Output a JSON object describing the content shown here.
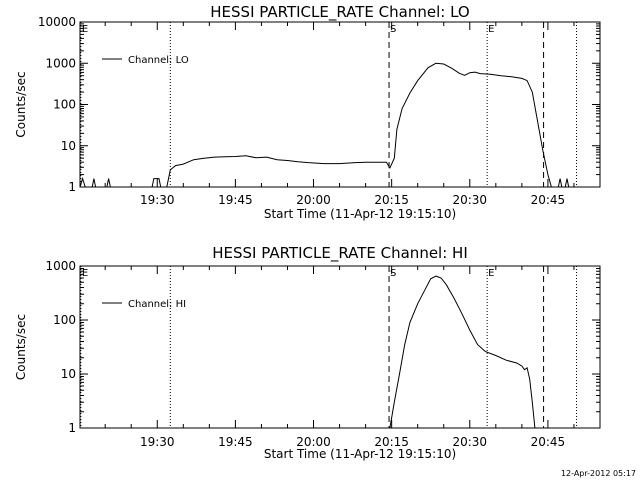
{
  "chart_data": [
    {
      "type": "line",
      "title": "HESSI PARTICLE_RATE Channel: LO",
      "xlabel": "Start Time (11-Apr-12 19:15:10)",
      "ylabel": "Counts/sec",
      "yscale": "log",
      "ylim": [
        1,
        10000
      ],
      "xlim": [
        "19:15:10",
        "20:55:00"
      ],
      "x_ticks": [
        "19:30",
        "19:45",
        "20:00",
        "20:15",
        "20:30",
        "20:45"
      ],
      "y_ticks": [
        "1",
        "10",
        "100",
        "1000",
        "10000"
      ],
      "legend": {
        "position": "top-left",
        "entries": [
          "Channel: LO"
        ]
      },
      "markers": [
        {
          "time": "19:15:20",
          "label": "E",
          "style": "dotted"
        },
        {
          "time": "19:32:30",
          "label": "",
          "style": "dotted"
        },
        {
          "time": "20:14:30",
          "label": "S",
          "style": "dashed"
        },
        {
          "time": "20:33:20",
          "label": "E",
          "style": "dotted"
        },
        {
          "time": "20:44:10",
          "label": "",
          "style": "dashed"
        },
        {
          "time": "20:50:30",
          "label": "",
          "style": "dotted"
        }
      ],
      "series": [
        {
          "name": "Channel: LO",
          "points": [
            [
              "19:15:10",
              1
            ],
            [
              "19:15:40",
              1.6
            ],
            [
              "19:16:10",
              1
            ],
            [
              "19:17:30",
              1
            ],
            [
              "19:17:50",
              1.6
            ],
            [
              "19:18:10",
              1
            ],
            [
              "19:20:20",
              1
            ],
            [
              "19:20:40",
              1.6
            ],
            [
              "19:21:00",
              1
            ],
            [
              "19:29:00",
              1
            ],
            [
              "19:29:20",
              1.6
            ],
            [
              "19:30:20",
              1.6
            ],
            [
              "19:30:40",
              1
            ],
            [
              "19:31:50",
              1
            ],
            [
              "19:32:30",
              2.6
            ],
            [
              "19:33:30",
              3.3
            ],
            [
              "19:35:00",
              3.6
            ],
            [
              "19:37:00",
              4.6
            ],
            [
              "19:39:00",
              5.0
            ],
            [
              "19:41:00",
              5.3
            ],
            [
              "19:43:00",
              5.4
            ],
            [
              "19:45:00",
              5.5
            ],
            [
              "19:47:00",
              5.7
            ],
            [
              "19:49:00",
              5.1
            ],
            [
              "19:51:00",
              5.3
            ],
            [
              "19:53:00",
              4.6
            ],
            [
              "19:55:00",
              4.4
            ],
            [
              "19:57:00",
              4.1
            ],
            [
              "19:59:00",
              3.9
            ],
            [
              "20:02:00",
              3.7
            ],
            [
              "20:05:00",
              3.7
            ],
            [
              "20:08:00",
              3.9
            ],
            [
              "20:10:00",
              4.0
            ],
            [
              "20:12:00",
              4.0
            ],
            [
              "20:14:00",
              4.0
            ],
            [
              "20:14:40",
              2.9
            ],
            [
              "20:15:30",
              5
            ],
            [
              "20:16:00",
              25
            ],
            [
              "20:17:00",
              80
            ],
            [
              "20:18:30",
              190
            ],
            [
              "20:20:00",
              380
            ],
            [
              "20:22:00",
              780
            ],
            [
              "20:23:30",
              1000
            ],
            [
              "20:25:00",
              960
            ],
            [
              "20:26:30",
              760
            ],
            [
              "20:28:00",
              570
            ],
            [
              "20:29:00",
              510
            ],
            [
              "20:30:00",
              590
            ],
            [
              "20:31:00",
              610
            ],
            [
              "20:32:00",
              560
            ],
            [
              "20:34:00",
              540
            ],
            [
              "20:36:00",
              500
            ],
            [
              "20:38:00",
              470
            ],
            [
              "20:40:00",
              430
            ],
            [
              "20:41:00",
              380
            ],
            [
              "20:42:00",
              200
            ],
            [
              "20:43:00",
              40
            ],
            [
              "20:44:00",
              8
            ],
            [
              "20:45:00",
              2
            ],
            [
              "20:45:40",
              1
            ],
            [
              "20:47:00",
              1
            ],
            [
              "20:47:20",
              1.6
            ],
            [
              "20:47:40",
              1
            ],
            [
              "20:48:20",
              1
            ],
            [
              "20:48:40",
              1.6
            ],
            [
              "20:49:00",
              1
            ]
          ]
        }
      ]
    },
    {
      "type": "line",
      "title": "HESSI PARTICLE_RATE Channel: HI",
      "xlabel": "Start Time (11-Apr-12 19:15:10)",
      "ylabel": "Counts/sec",
      "yscale": "log",
      "ylim": [
        1,
        1000
      ],
      "xlim": [
        "19:15:10",
        "20:55:00"
      ],
      "x_ticks": [
        "19:30",
        "19:45",
        "20:00",
        "20:15",
        "20:30",
        "20:45"
      ],
      "y_ticks": [
        "1",
        "10",
        "100",
        "1000"
      ],
      "legend": {
        "position": "top-left",
        "entries": [
          "Channel: HI"
        ]
      },
      "markers": [
        {
          "time": "19:15:20",
          "label": "E",
          "style": "dotted"
        },
        {
          "time": "19:32:30",
          "label": "",
          "style": "dotted"
        },
        {
          "time": "20:14:30",
          "label": "S",
          "style": "dashed"
        },
        {
          "time": "20:33:20",
          "label": "E",
          "style": "dotted"
        },
        {
          "time": "20:44:10",
          "label": "",
          "style": "dashed"
        },
        {
          "time": "20:50:30",
          "label": "",
          "style": "dotted"
        }
      ],
      "series": [
        {
          "name": "Channel: HI",
          "points": [
            [
              "20:14:40",
              1
            ],
            [
              "20:15:30",
              3
            ],
            [
              "20:16:30",
              10
            ],
            [
              "20:17:30",
              35
            ],
            [
              "20:18:30",
              90
            ],
            [
              "20:20:00",
              200
            ],
            [
              "20:21:30",
              380
            ],
            [
              "20:22:30",
              580
            ],
            [
              "20:23:30",
              650
            ],
            [
              "20:24:30",
              600
            ],
            [
              "20:25:30",
              450
            ],
            [
              "20:27:00",
              250
            ],
            [
              "20:28:30",
              130
            ],
            [
              "20:30:00",
              65
            ],
            [
              "20:31:30",
              35
            ],
            [
              "20:33:00",
              26
            ],
            [
              "20:35:00",
              22
            ],
            [
              "20:37:00",
              18
            ],
            [
              "20:39:00",
              16
            ],
            [
              "20:40:00",
              14
            ],
            [
              "20:40:30",
              12
            ],
            [
              "20:41:00",
              13
            ],
            [
              "20:41:30",
              8
            ],
            [
              "20:42:00",
              3
            ],
            [
              "20:42:30",
              1
            ]
          ]
        }
      ]
    }
  ],
  "footer_timestamp": "12-Apr-2012 05:17"
}
